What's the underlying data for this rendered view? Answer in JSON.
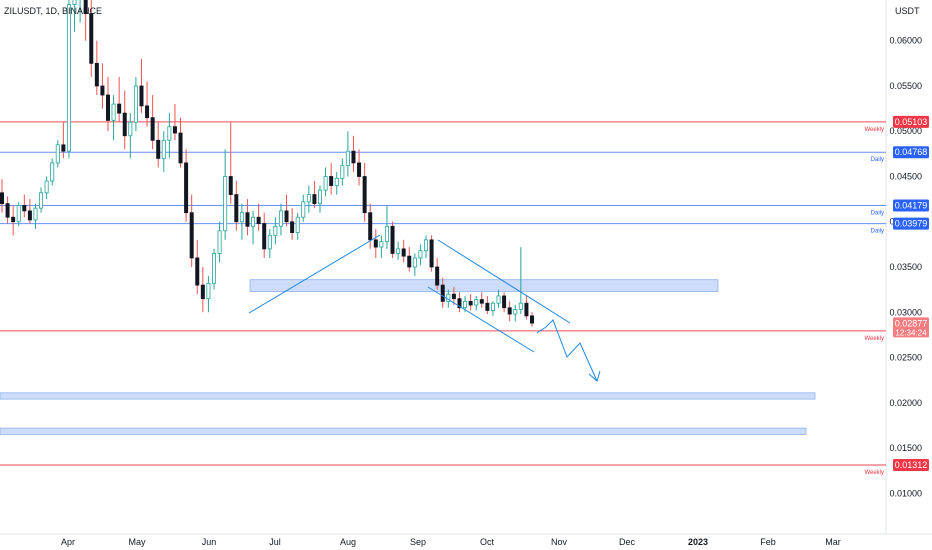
{
  "header": {
    "symbol": "ZILUSDT, 1D, BINANCE",
    "currency": "USDT"
  },
  "colors": {
    "up": "#26a69a",
    "down": "#ef5350",
    "candle": "#131722",
    "support_line": "#f23645",
    "daily_line": "#2962ff",
    "zone_fill": "#bbd0f7",
    "drawing": "#1e88e5",
    "axis_text": "#131722"
  },
  "chart_data": {
    "type": "candlestick",
    "title": "ZILUSDT, 1D, BINANCE",
    "x_ticks": [
      "Apr",
      "May",
      "Jun",
      "Jul",
      "Aug",
      "Sep",
      "Oct",
      "Nov",
      "Dec",
      "2023",
      "Feb",
      "Mar"
    ],
    "y_ticks": [
      0.01,
      0.015,
      0.02,
      0.025,
      0.03,
      0.035,
      0.04,
      0.045,
      0.05,
      0.055,
      0.06
    ],
    "y_tick_labels": [
      "0.01000",
      "0.01500",
      "0.02000",
      "0.02500",
      "0.03000",
      "0.03500",
      "0.04000",
      "0.04500",
      "0.05000",
      "0.05500",
      "0.06000"
    ],
    "ylim": [
      0.0055,
      0.0645
    ],
    "x_range_dates": [
      "2022-03-06",
      "2022-03-29"
    ],
    "levels": [
      {
        "price": 0.05103,
        "label": "0.05103",
        "tag": "Weekly",
        "kind": "weekly"
      },
      {
        "price": 0.04768,
        "label": "0.04768",
        "tag": "Daily",
        "kind": "daily"
      },
      {
        "price": 0.04179,
        "label": "0.04179",
        "tag": "Daily",
        "kind": "daily"
      },
      {
        "price": 0.03979,
        "label": "0.03979",
        "tag": "Daily",
        "kind": "daily"
      },
      {
        "price": 0.02794,
        "label": "0.02794",
        "tag": "Weekly",
        "kind": "weekly"
      },
      {
        "price": 0.01312,
        "label": "0.01312",
        "tag": "Weekly",
        "kind": "weekly"
      }
    ],
    "current_price": {
      "price": "0.02877",
      "countdown": "12:34:24"
    },
    "zones": [
      {
        "top": 0.0336,
        "bottom": 0.0323
      },
      {
        "top": 0.0211,
        "bottom": 0.0204
      },
      {
        "top": 0.0172,
        "bottom": 0.0165
      }
    ],
    "candles": [
      [
        0.0432,
        0.0447,
        0.041,
        0.042
      ],
      [
        0.042,
        0.0428,
        0.0398,
        0.0405
      ],
      [
        0.0405,
        0.0418,
        0.0385,
        0.04
      ],
      [
        0.04,
        0.0422,
        0.0395,
        0.0418
      ],
      [
        0.0418,
        0.043,
        0.0405,
        0.0412
      ],
      [
        0.0412,
        0.0425,
        0.0398,
        0.0402
      ],
      [
        0.0402,
        0.042,
        0.0392,
        0.0415
      ],
      [
        0.0415,
        0.0438,
        0.041,
        0.0432
      ],
      [
        0.0432,
        0.045,
        0.0425,
        0.0445
      ],
      [
        0.0445,
        0.047,
        0.044,
        0.0465
      ],
      [
        0.0465,
        0.049,
        0.046,
        0.0485
      ],
      [
        0.0485,
        0.051,
        0.047,
        0.0478
      ],
      [
        0.0478,
        0.065,
        0.047,
        0.064
      ],
      [
        0.064,
        0.07,
        0.061,
        0.066
      ],
      [
        0.066,
        0.072,
        0.062,
        0.068
      ],
      [
        0.068,
        0.07,
        0.06,
        0.063
      ],
      [
        0.063,
        0.065,
        0.056,
        0.0575
      ],
      [
        0.0575,
        0.06,
        0.054,
        0.055
      ],
      [
        0.055,
        0.0575,
        0.0525,
        0.054
      ],
      [
        0.054,
        0.056,
        0.05,
        0.0512
      ],
      [
        0.0512,
        0.054,
        0.049,
        0.053
      ],
      [
        0.053,
        0.056,
        0.051,
        0.052
      ],
      [
        0.052,
        0.0545,
        0.048,
        0.0495
      ],
      [
        0.0495,
        0.052,
        0.047,
        0.051
      ],
      [
        0.051,
        0.056,
        0.05,
        0.055
      ],
      [
        0.055,
        0.058,
        0.052,
        0.0528
      ],
      [
        0.0528,
        0.0555,
        0.0505,
        0.0515
      ],
      [
        0.0515,
        0.054,
        0.048,
        0.049
      ],
      [
        0.049,
        0.051,
        0.046,
        0.047
      ],
      [
        0.047,
        0.05,
        0.0455,
        0.049
      ],
      [
        0.049,
        0.052,
        0.047,
        0.0505
      ],
      [
        0.0505,
        0.053,
        0.049,
        0.0498
      ],
      [
        0.0498,
        0.0515,
        0.046,
        0.0465
      ],
      [
        0.0465,
        0.048,
        0.04,
        0.041
      ],
      [
        0.041,
        0.043,
        0.035,
        0.036
      ],
      [
        0.036,
        0.038,
        0.032,
        0.033
      ],
      [
        0.033,
        0.035,
        0.03,
        0.0315
      ],
      [
        0.0315,
        0.034,
        0.03,
        0.0332
      ],
      [
        0.0332,
        0.037,
        0.0325,
        0.0365
      ],
      [
        0.0365,
        0.04,
        0.0355,
        0.039
      ],
      [
        0.039,
        0.048,
        0.038,
        0.045
      ],
      [
        0.045,
        0.051,
        0.042,
        0.043
      ],
      [
        0.043,
        0.0445,
        0.039,
        0.04
      ],
      [
        0.04,
        0.042,
        0.038,
        0.041
      ],
      [
        0.041,
        0.0425,
        0.0385,
        0.0395
      ],
      [
        0.0395,
        0.0412,
        0.0375,
        0.0405
      ],
      [
        0.0405,
        0.042,
        0.039,
        0.0398
      ],
      [
        0.0398,
        0.041,
        0.036,
        0.037
      ],
      [
        0.037,
        0.0392,
        0.036,
        0.0385
      ],
      [
        0.0385,
        0.0405,
        0.0375,
        0.0395
      ],
      [
        0.0395,
        0.042,
        0.0385,
        0.0412
      ],
      [
        0.0412,
        0.043,
        0.0395,
        0.04
      ],
      [
        0.04,
        0.0415,
        0.038,
        0.0388
      ],
      [
        0.0388,
        0.041,
        0.038,
        0.0405
      ],
      [
        0.0405,
        0.043,
        0.04,
        0.0422
      ],
      [
        0.0422,
        0.044,
        0.041,
        0.043
      ],
      [
        0.043,
        0.0445,
        0.0415,
        0.042
      ],
      [
        0.042,
        0.044,
        0.041,
        0.0435
      ],
      [
        0.0435,
        0.046,
        0.0428,
        0.045
      ],
      [
        0.045,
        0.0465,
        0.043,
        0.044
      ],
      [
        0.044,
        0.0455,
        0.043,
        0.0448
      ],
      [
        0.0448,
        0.047,
        0.044,
        0.0462
      ],
      [
        0.0462,
        0.05,
        0.045,
        0.0478
      ],
      [
        0.0478,
        0.0495,
        0.0455,
        0.0465
      ],
      [
        0.0465,
        0.048,
        0.044,
        0.045
      ],
      [
        0.045,
        0.0465,
        0.04,
        0.041
      ],
      [
        0.041,
        0.042,
        0.037,
        0.038
      ],
      [
        0.038,
        0.0392,
        0.036,
        0.0372
      ],
      [
        0.0372,
        0.0385,
        0.036,
        0.0378
      ],
      [
        0.0378,
        0.0418,
        0.037,
        0.0395
      ],
      [
        0.0395,
        0.04,
        0.036,
        0.0365
      ],
      [
        0.0365,
        0.0378,
        0.0358,
        0.037
      ],
      [
        0.037,
        0.038,
        0.0355,
        0.0362
      ],
      [
        0.0362,
        0.0372,
        0.0345,
        0.035
      ],
      [
        0.035,
        0.0365,
        0.034,
        0.036
      ],
      [
        0.036,
        0.0375,
        0.0352,
        0.0368
      ],
      [
        0.0368,
        0.0385,
        0.036,
        0.038
      ],
      [
        0.038,
        0.0385,
        0.0345,
        0.035
      ],
      [
        0.035,
        0.036,
        0.0325,
        0.033
      ],
      [
        0.033,
        0.0338,
        0.0305,
        0.0312
      ],
      [
        0.0312,
        0.0325,
        0.0305,
        0.032
      ],
      [
        0.032,
        0.0328,
        0.0308,
        0.0315
      ],
      [
        0.0315,
        0.0322,
        0.03,
        0.0305
      ],
      [
        0.0305,
        0.0318,
        0.03,
        0.0312
      ],
      [
        0.0312,
        0.032,
        0.0302,
        0.0308
      ],
      [
        0.0308,
        0.0318,
        0.0302,
        0.0314
      ],
      [
        0.0314,
        0.0322,
        0.0305,
        0.031
      ],
      [
        0.031,
        0.0318,
        0.0298,
        0.0302
      ],
      [
        0.0302,
        0.0312,
        0.0296,
        0.031
      ],
      [
        0.031,
        0.0325,
        0.0305,
        0.0318
      ],
      [
        0.0318,
        0.0322,
        0.03,
        0.0305
      ],
      [
        0.0305,
        0.0312,
        0.029,
        0.0298
      ],
      [
        0.0298,
        0.0308,
        0.029,
        0.0303
      ],
      [
        0.0303,
        0.0372,
        0.0298,
        0.031
      ],
      [
        0.031,
        0.0318,
        0.0292,
        0.0296
      ],
      [
        0.0296,
        0.03,
        0.0284,
        0.0288
      ]
    ]
  }
}
